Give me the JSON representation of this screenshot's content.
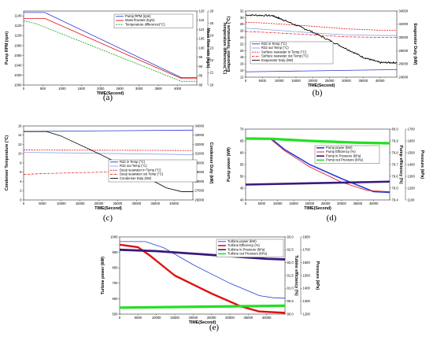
{
  "chart_data": [
    {
      "id": "a",
      "type": "line",
      "panel_label": "(a)",
      "xlabel": "TIME(Second)",
      "ylabel": "Pump RPM (rpm)",
      "y2label": "Mass flow rate (kg/s)",
      "y3label": "Temperature difference(°C)",
      "xlim": [
        0,
        4500
      ],
      "ylim": [
        1000,
        1150
      ],
      "y2lim": [
        80,
        120
      ],
      "y3lim": [
        20,
        26
      ],
      "xticks": [
        "0",
        "500",
        "1000",
        "1500",
        "2000",
        "2500",
        "3000",
        "3500",
        "4000"
      ],
      "yticks": [
        "1000",
        "1020",
        "1040",
        "1060",
        "1080",
        "1100",
        "1120",
        "1140"
      ],
      "y2ticks": [
        "80",
        "85",
        "90",
        "95",
        "100",
        "105",
        "110",
        "115",
        "120"
      ],
      "y3ticks": [
        "20",
        "21",
        "22",
        "23",
        "24",
        "25",
        "26"
      ],
      "legend_position": "top-right",
      "series": [
        {
          "name": "Pump RPM (rpm)",
          "axis": "y",
          "color": "#2a3bd8",
          "dash": "",
          "x": [
            0,
            550,
            4100,
            4500
          ],
          "y": [
            1147,
            1147,
            1015,
            1015
          ]
        },
        {
          "name": "Mass flowrate (kg/s)",
          "axis": "y2",
          "color": "#e01010",
          "dash": "",
          "x": [
            0,
            550,
            4100,
            4500
          ],
          "y": [
            116,
            116,
            83.5,
            83.5
          ]
        },
        {
          "name": "Temperature difference(°C)",
          "axis": "y3",
          "color": "#1a9a1a",
          "dash": "2,1.2",
          "x": [
            0,
            300,
            4100,
            4500
          ],
          "y": [
            25.2,
            25.0,
            20.3,
            20.3
          ]
        }
      ]
    },
    {
      "id": "b",
      "type": "line",
      "panel_label": "(b)",
      "xlabel": "TIME(Second)",
      "ylabel": "Evaporator Temperature (°C)",
      "y2label": "Evaporator Duty (kW)",
      "xlim": [
        0,
        45000
      ],
      "ylim": [
        12,
        32
      ],
      "y2lim": [
        24000,
        34000
      ],
      "xticks": [
        "0",
        "5000",
        "10000",
        "15000",
        "20000",
        "25000",
        "30000",
        "35000",
        "40000"
      ],
      "yticks": [
        "12",
        "14",
        "16",
        "18",
        "20",
        "22",
        "24",
        "26",
        "28",
        "30",
        "32"
      ],
      "y2ticks": [
        "24000",
        "26000",
        "28000",
        "30000",
        "32000",
        "34000"
      ],
      "legend_position": "bottom-left",
      "series": [
        {
          "name": "R32 in Temp (°C)",
          "axis": "y",
          "color": "#2a3bd8",
          "dash": "",
          "x": [
            0,
            45000
          ],
          "y": [
            13.6,
            14.3
          ]
        },
        {
          "name": "R32 out Temp (°C)",
          "axis": "y",
          "color": "#8aa0e8",
          "dash": "",
          "x": [
            0,
            5000,
            20000,
            30000,
            40000,
            45000
          ],
          "y": [
            26.8,
            26.5,
            25.4,
            24.8,
            24.6,
            24.6
          ]
        },
        {
          "name": "Surface seawater in Temp (°C)",
          "axis": "y",
          "color": "#e01010",
          "dash": "2,1.2",
          "x": [
            0,
            5000,
            20000,
            30000,
            40000,
            45000
          ],
          "y": [
            28.6,
            28.4,
            27.4,
            26.6,
            26.2,
            26.2
          ]
        },
        {
          "name": "Surface seawater out Temp (°C)",
          "axis": "y",
          "color": "#e01010",
          "dash": "2.5,1,0.6,1",
          "x": [
            0,
            5000,
            20000,
            30000,
            40000,
            45000
          ],
          "y": [
            25.8,
            25.6,
            24.8,
            24.2,
            24.0,
            24.0
          ]
        },
        {
          "name": "Evaporator Duty (kW)",
          "axis": "y2",
          "color": "#000000",
          "dash": "",
          "noisy": true,
          "x": [
            0,
            8000,
            12000,
            20000,
            28000,
            35000,
            40000,
            45000
          ],
          "y": [
            33400,
            33300,
            32500,
            30800,
            28800,
            27000,
            26200,
            26200
          ]
        }
      ]
    },
    {
      "id": "c",
      "type": "line",
      "panel_label": "(c)",
      "xlabel": "TIME(Second)",
      "ylabel": "Condenser Temperature (°C)",
      "y2label": "Condenser Duty (kW)",
      "xlim": [
        0,
        45000
      ],
      "ylim": [
        0,
        16
      ],
      "y2lim": [
        26000,
        34000
      ],
      "xticks": [
        "0",
        "5000",
        "10000",
        "15000",
        "20000",
        "25000",
        "30000",
        "35000",
        "40000"
      ],
      "yticks": [
        "0",
        "2",
        "4",
        "6",
        "8",
        "10",
        "12",
        "14",
        "16"
      ],
      "y2ticks": [
        "26000",
        "27000",
        "28000",
        "29000",
        "30000",
        "31000",
        "32000",
        "33000",
        "34000"
      ],
      "legend_position": "center-right",
      "series": [
        {
          "name": "R32 in Temp (°C)",
          "axis": "y",
          "color": "#2a3bd8",
          "dash": "",
          "x": [
            0,
            45000
          ],
          "y": [
            14.8,
            15.1
          ]
        },
        {
          "name": "R32 out Temp (°C)",
          "axis": "y",
          "color": "#8aa0e8",
          "dash": "",
          "x": [
            0,
            45000
          ],
          "y": [
            10.3,
            9.8
          ]
        },
        {
          "name": "Deep seawater in Temp (°C)",
          "axis": "y",
          "color": "#e01010",
          "dash": "2,1.2",
          "x": [
            0,
            45000
          ],
          "y": [
            10.8,
            10.7
          ]
        },
        {
          "name": "Deep seawater out Temp (°C)",
          "axis": "y",
          "color": "#e01010",
          "dash": "2.5,1,0.6,1",
          "x": [
            0,
            5000,
            20000,
            35000,
            45000
          ],
          "y": [
            5.5,
            5.7,
            6.0,
            6.3,
            6.5
          ]
        },
        {
          "name": "Condenser Duty (kW)",
          "axis": "y2",
          "color": "#000000",
          "dash": "",
          "x": [
            0,
            6000,
            10000,
            20000,
            30000,
            38000,
            42000,
            45000
          ],
          "y": [
            33400,
            33400,
            32900,
            31000,
            29000,
            27300,
            26900,
            26900
          ]
        }
      ]
    },
    {
      "id": "d",
      "type": "line",
      "panel_label": "(d)",
      "xlabel": "TIME(Second)",
      "ylabel": "Pump power (kW)",
      "y2label": "Pump efficiency (%)",
      "y3label": "Pressure (kPa)",
      "xlim": [
        0,
        45000
      ],
      "ylim": [
        40,
        70
      ],
      "y2lim": [
        79.4,
        80.0
      ],
      "y3lim": [
        1100,
        1700
      ],
      "xticks": [
        "0",
        "5000",
        "10000",
        "15000",
        "20000",
        "25000",
        "30000",
        "35000",
        "40000"
      ],
      "yticks": [
        "40",
        "45",
        "50",
        "55",
        "60",
        "65",
        "70"
      ],
      "y2ticks": [
        "79.4",
        "79.5",
        "79.6",
        "79.7",
        "79.8",
        "79.9",
        "80.0"
      ],
      "y3ticks": [
        "1100",
        "1200",
        "1300",
        "1400",
        "1500",
        "1600",
        "1700"
      ],
      "legend_position": "center-right",
      "series": [
        {
          "name": "Pump power (kW)",
          "axis": "y",
          "color": "#2a3bd8",
          "dash": "",
          "thick": 1.6,
          "x": [
            0,
            8000,
            12000,
            20000,
            30000,
            40000,
            45000
          ],
          "y": [
            66,
            66,
            61.5,
            55,
            49,
            43.5,
            43.2
          ]
        },
        {
          "name": "Pump Efficiency (%)",
          "axis": "y2",
          "color": "#e01010",
          "dash": "",
          "x": [
            0,
            7500,
            12000,
            20000,
            30000,
            38000,
            45000
          ],
          "y": [
            79.92,
            79.92,
            79.82,
            79.68,
            79.55,
            79.48,
            79.47
          ]
        },
        {
          "name": "Pump in Pressure (kPa)",
          "axis": "y3",
          "color": "#3a1a7a",
          "dash": "",
          "thick": 2.6,
          "x": [
            0,
            45000
          ],
          "y": [
            1230,
            1255
          ]
        },
        {
          "name": "Pump out Pressure (kPa)",
          "axis": "y3",
          "color": "#22e022",
          "dash": "",
          "thick": 3.2,
          "x": [
            0,
            8000,
            20000,
            35000,
            45000
          ],
          "y": [
            1620,
            1618,
            1600,
            1585,
            1580
          ]
        }
      ]
    },
    {
      "id": "e",
      "type": "line",
      "panel_label": "(e)",
      "xlabel": "TIME(Second)",
      "ylabel": "Turbine power (kW)",
      "y2label": "Tubine efficiency (%)",
      "y3label": "Pressure (kPa)",
      "xlim": [
        0,
        45000
      ],
      "ylim": [
        500,
        1000
      ],
      "y2lim": [
        90.0,
        93.0
      ],
      "y3lim": [
        1200,
        1800
      ],
      "xticks": [
        "0",
        "5000",
        "10000",
        "15000",
        "20000",
        "25000",
        "30000",
        "35000",
        "40000"
      ],
      "yticks": [
        "500",
        "600",
        "700",
        "800",
        "900",
        "1000"
      ],
      "y2ticks": [
        "90.0",
        "90.5",
        "91.0",
        "91.5",
        "92.0",
        "92.5",
        "93.0"
      ],
      "y3ticks": [
        "1200",
        "1300",
        "1400",
        "1500",
        "1600",
        "1700",
        "1800"
      ],
      "legend_position": "top-right",
      "series": [
        {
          "name": "Turbine power (kW)",
          "axis": "y",
          "color": "#2a3bd8",
          "dash": "",
          "x": [
            0,
            7000,
            12000,
            20000,
            30000,
            38000,
            42000,
            45000
          ],
          "y": [
            970,
            970,
            930,
            820,
            700,
            620,
            605,
            603
          ]
        },
        {
          "name": "Turbine Efficiency (%)",
          "axis": "y2",
          "color": "#e01010",
          "dash": "",
          "thick": 2.4,
          "x": [
            0,
            5000,
            8000,
            15000,
            25000,
            33000,
            38000,
            45000
          ],
          "y": [
            92.7,
            92.6,
            92.3,
            91.5,
            90.8,
            90.3,
            90.1,
            90.05
          ]
        },
        {
          "name": "Turbine in Pressure (kPa)",
          "axis": "y3",
          "color": "#3a1a7a",
          "dash": "",
          "thick": 2.8,
          "x": [
            0,
            10000,
            20000,
            30000,
            40000,
            45000
          ],
          "y": [
            1700,
            1690,
            1670,
            1650,
            1630,
            1625
          ]
        },
        {
          "name": "Turbine out Pressure (kPa)",
          "axis": "y3",
          "color": "#22e022",
          "dash": "",
          "thick": 3.2,
          "x": [
            0,
            45000
          ],
          "y": [
            1250,
            1265
          ]
        }
      ]
    }
  ]
}
